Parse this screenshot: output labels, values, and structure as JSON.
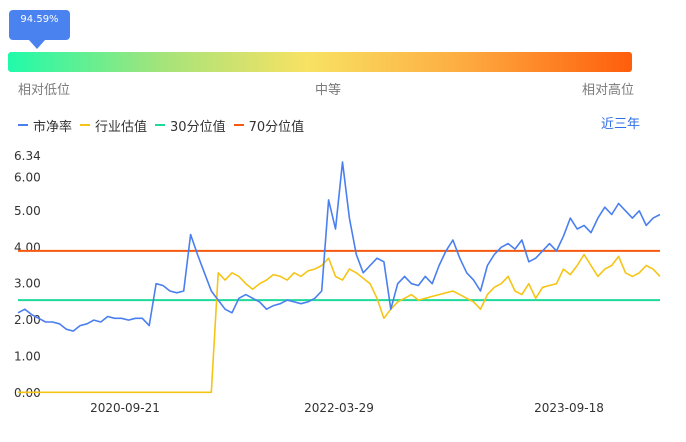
{
  "gauge": {
    "value_label": "94.59%",
    "value_percent": 94.59,
    "low_label": "相对低位",
    "mid_label": "中等",
    "high_label": "相对高位"
  },
  "legend": {
    "items": [
      {
        "label": "市净率",
        "color": "#4a7ff0"
      },
      {
        "label": "行业估值",
        "color": "#f5c516"
      },
      {
        "label": "30分位值",
        "color": "#1fd99a"
      },
      {
        "label": "70分位值",
        "color": "#f55a0f"
      }
    ],
    "period": "近三年"
  },
  "chart_data": {
    "type": "line",
    "x_tick_labels": [
      "2020-09-21",
      "2022-03-29",
      "2023-09-18"
    ],
    "y_tick_labels": [
      "0.00",
      "1.00",
      "2.00",
      "3.00",
      "4.00",
      "5.00",
      "6.00",
      "6.34"
    ],
    "ylim": [
      0,
      6.34
    ],
    "xlabel": "",
    "ylabel": "",
    "grid": false,
    "series": [
      {
        "name": "市净率",
        "color": "#4a7ff0",
        "values": [
          2.2,
          2.3,
          2.15,
          2.05,
          1.95,
          1.95,
          1.9,
          1.75,
          1.7,
          1.85,
          1.9,
          2.0,
          1.95,
          2.1,
          2.05,
          2.05,
          2.0,
          2.05,
          2.05,
          1.85,
          3.0,
          2.95,
          2.8,
          2.75,
          2.8,
          4.35,
          3.8,
          3.3,
          2.8,
          2.55,
          2.3,
          2.2,
          2.6,
          2.7,
          2.6,
          2.5,
          2.3,
          2.4,
          2.45,
          2.55,
          2.5,
          2.45,
          2.5,
          2.6,
          2.8,
          5.3,
          4.5,
          6.34,
          4.8,
          3.8,
          3.3,
          3.5,
          3.7,
          3.6,
          2.3,
          3.0,
          3.2,
          3.0,
          2.95,
          3.2,
          3.0,
          3.5,
          3.9,
          4.2,
          3.7,
          3.3,
          3.1,
          2.8,
          3.5,
          3.8,
          4.0,
          4.1,
          3.95,
          4.2,
          3.6,
          3.7,
          3.9,
          4.1,
          3.9,
          4.3,
          4.8,
          4.5,
          4.6,
          4.4,
          4.8,
          5.1,
          4.9,
          5.2,
          5.0,
          4.8,
          5.0,
          4.6,
          4.8,
          4.9
        ]
      },
      {
        "name": "行业估值",
        "color": "#f5c516",
        "values": [
          0.02,
          0.02,
          0.02,
          0.02,
          0.02,
          0.02,
          0.02,
          0.02,
          0.02,
          0.02,
          0.02,
          0.02,
          0.02,
          0.02,
          0.02,
          0.02,
          0.02,
          0.02,
          0.02,
          0.02,
          0.02,
          0.02,
          0.02,
          0.02,
          0.02,
          0.02,
          0.02,
          0.02,
          0.02,
          3.3,
          3.1,
          3.3,
          3.2,
          3.0,
          2.85,
          3.0,
          3.1,
          3.25,
          3.2,
          3.1,
          3.3,
          3.2,
          3.35,
          3.4,
          3.5,
          3.7,
          3.2,
          3.1,
          3.4,
          3.3,
          3.15,
          3.0,
          2.6,
          2.05,
          2.3,
          2.5,
          2.6,
          2.7,
          2.55,
          2.6,
          2.65,
          2.7,
          2.75,
          2.8,
          2.7,
          2.6,
          2.5,
          2.3,
          2.7,
          2.9,
          3.0,
          3.2,
          2.8,
          2.7,
          3.0,
          2.6,
          2.9,
          2.95,
          3.0,
          3.4,
          3.25,
          3.5,
          3.8,
          3.5,
          3.2,
          3.4,
          3.5,
          3.75,
          3.3,
          3.2,
          3.3,
          3.5,
          3.4,
          3.2
        ]
      },
      {
        "name": "30分位值",
        "color": "#1fd99a",
        "values": [
          2.55,
          2.55
        ]
      },
      {
        "name": "70分位值",
        "color": "#f55a0f",
        "values": [
          3.9,
          3.9
        ]
      }
    ]
  }
}
